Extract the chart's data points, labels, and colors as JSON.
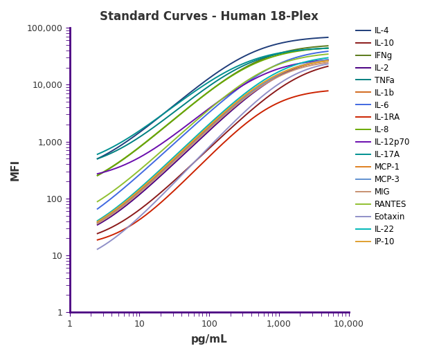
{
  "title": "Standard Curves - Human 18-Plex",
  "xlabel": "pg/mL",
  "ylabel": "MFI",
  "xlim": [
    1,
    10000
  ],
  "ylim": [
    1,
    100000
  ],
  "series": [
    {
      "name": "IL-4",
      "color": "#1f3d7a",
      "min": 230,
      "max": 72000,
      "ec50": 400,
      "hill": 1.1
    },
    {
      "name": "IL-10",
      "color": "#8b1a1a",
      "min": 15,
      "max": 28000,
      "ec50": 2000,
      "hill": 1.2
    },
    {
      "name": "IFNg",
      "color": "#5a7a1a",
      "min": 100,
      "max": 52000,
      "ec50": 500,
      "hill": 1.1
    },
    {
      "name": "IL-2",
      "color": "#4b0082",
      "min": 15,
      "max": 32000,
      "ec50": 1200,
      "hill": 1.2
    },
    {
      "name": "TNFa",
      "color": "#008080",
      "min": 300,
      "max": 46000,
      "ec50": 350,
      "hill": 1.1
    },
    {
      "name": "IL-1b",
      "color": "#d2691e",
      "min": 15,
      "max": 30000,
      "ec50": 1000,
      "hill": 1.2
    },
    {
      "name": "IL-6",
      "color": "#4169e1",
      "min": 15,
      "max": 44000,
      "ec50": 900,
      "hill": 1.15
    },
    {
      "name": "IL-1RA",
      "color": "#cc2200",
      "min": 14,
      "max": 8500,
      "ec50": 800,
      "hill": 1.3
    },
    {
      "name": "IL-8",
      "color": "#6aaa00",
      "min": 100,
      "max": 47000,
      "ec50": 450,
      "hill": 1.1
    },
    {
      "name": "IL-12p70",
      "color": "#6a0dad",
      "min": 200,
      "max": 30000,
      "ec50": 600,
      "hill": 1.1
    },
    {
      "name": "IL-17A",
      "color": "#009090",
      "min": 300,
      "max": 46000,
      "ec50": 300,
      "hill": 1.05
    },
    {
      "name": "MCP-1",
      "color": "#e08020",
      "min": 15,
      "max": 30000,
      "ec50": 950,
      "hill": 1.2
    },
    {
      "name": "MCP-3",
      "color": "#6090d0",
      "min": 15,
      "max": 32000,
      "ec50": 1100,
      "hill": 1.2
    },
    {
      "name": "MIG",
      "color": "#c89070",
      "min": 15,
      "max": 28000,
      "ec50": 1000,
      "hill": 1.2
    },
    {
      "name": "RANTES",
      "color": "#90c030",
      "min": 30,
      "max": 38000,
      "ec50": 700,
      "hill": 1.15
    },
    {
      "name": "Eotaxin",
      "color": "#9090c8",
      "min": 6,
      "max": 28000,
      "ec50": 1500,
      "hill": 1.3
    },
    {
      "name": "IL-22",
      "color": "#00b8b8",
      "min": 15,
      "max": 34000,
      "ec50": 1000,
      "hill": 1.2
    },
    {
      "name": "IP-10",
      "color": "#e0a030",
      "min": 15,
      "max": 30000,
      "ec50": 950,
      "hill": 1.2
    }
  ],
  "title_fontsize": 12,
  "axis_label_fontsize": 11,
  "legend_fontsize": 8.5,
  "background_color": "#ffffff",
  "spine_color": "#4b0082",
  "x_start": 2.5,
  "x_end": 5000
}
